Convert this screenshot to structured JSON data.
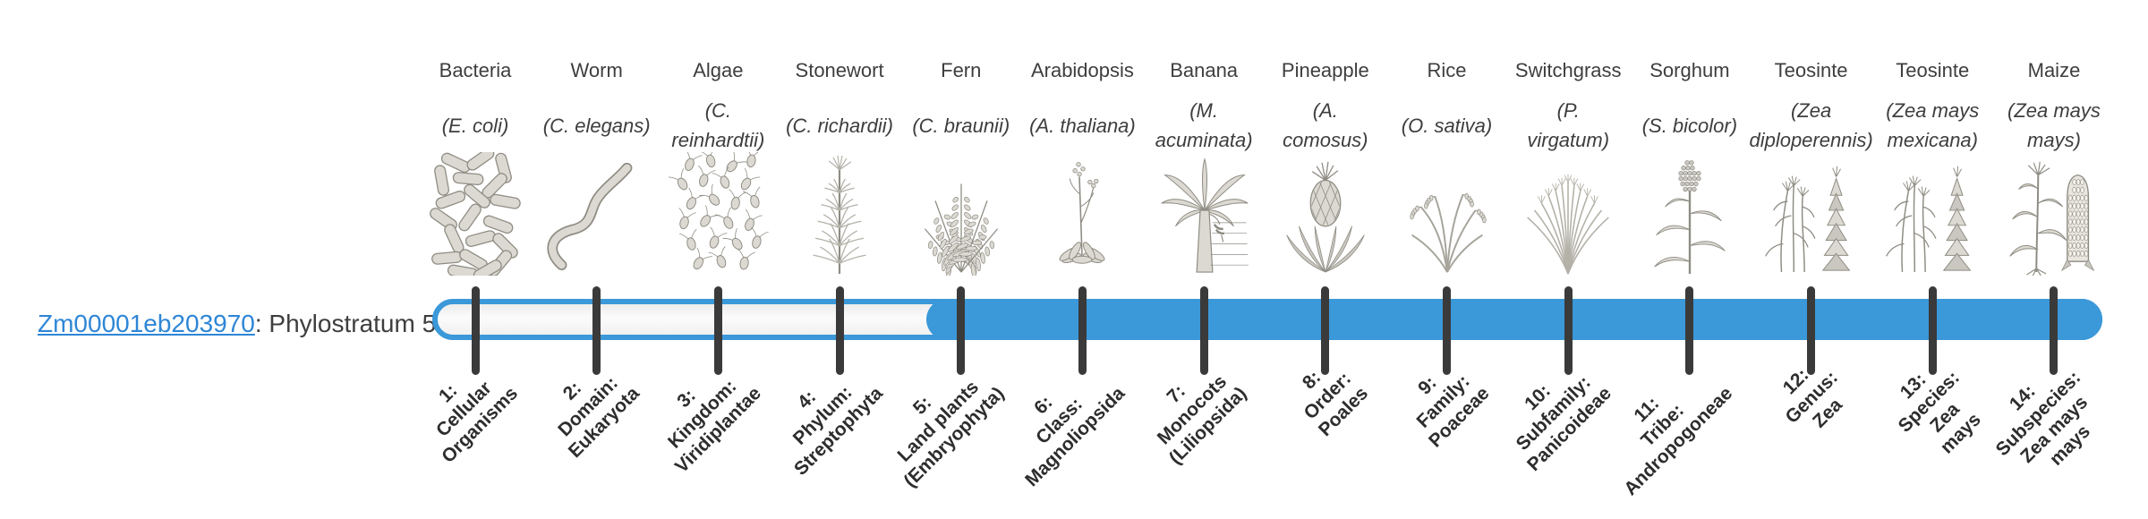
{
  "gene": {
    "id": "Zm00001eb203970",
    "label_suffix": ": Phylostratum 5",
    "phylostratum": 5
  },
  "colors": {
    "bar_blue": "#3b98d9",
    "tick_dark": "#3a3a3a",
    "text_dark": "#3e3e3e",
    "stage_label_dark": "#2d2d2d",
    "link_blue": "#2e86d6"
  },
  "timeline": {
    "total_strata": 14,
    "filled_from_stratum": 5,
    "filled_to_stratum": 14
  },
  "chart_data": {
    "type": "bar",
    "title": "Zm00001eb203970: Phylostratum 5",
    "orientation": "horizontal",
    "categories": [
      "1: Cellular Organisms",
      "2: Domain: Eukaryota",
      "3: Kingdom: Viridiplantae",
      "4: Phylum: Streptophyta",
      "5: Land plants (Embryophyta)",
      "6: Class: Magnoliopsida",
      "7: Monocots (Liliopsida)",
      "8: Order: Poales",
      "9: Family: Poaceae",
      "10: Subfamily: Panicoideae",
      "11: Tribe: Andropogoneae",
      "12: Genus: Zea",
      "13: Species: Zea mays",
      "14: Subspecies: Zea mays mays"
    ],
    "series": [
      {
        "name": "Zm00001eb203970",
        "phylostratum": 5,
        "conserved_range": [
          5,
          14
        ]
      }
    ],
    "legend": false
  },
  "strata": [
    {
      "index": 1,
      "organism": "Bacteria",
      "species_lines": [
        "(E. coli)"
      ],
      "icon": "bacteria-illustration",
      "stage_lines": [
        "1:",
        "Cellular",
        "Organisms"
      ]
    },
    {
      "index": 2,
      "organism": "Worm",
      "species_lines": [
        "(C. elegans)"
      ],
      "icon": "worm-illustration",
      "stage_lines": [
        "2:",
        "Domain:",
        "Eukaryota"
      ]
    },
    {
      "index": 3,
      "organism": "Algae",
      "species_lines": [
        "(C.",
        "reinhardtii)"
      ],
      "icon": "algae-illustration",
      "stage_lines": [
        "3:",
        "Kingdom:",
        "Viridiplantae"
      ]
    },
    {
      "index": 4,
      "organism": "Stonewort",
      "species_lines": [
        "(C. richardii)"
      ],
      "icon": "stonewort-illustration",
      "stage_lines": [
        "4:",
        "Phylum:",
        "Streptophyta"
      ]
    },
    {
      "index": 5,
      "organism": "Fern",
      "species_lines": [
        "(C. braunii)"
      ],
      "icon": "fern-illustration",
      "stage_lines": [
        "5:",
        "Land plants",
        "(Embryophyta)"
      ]
    },
    {
      "index": 6,
      "organism": "Arabidopsis",
      "species_lines": [
        "(A. thaliana)"
      ],
      "icon": "arabidopsis-illustration",
      "stage_lines": [
        "6:",
        "Class:",
        "Magnoliopsida"
      ]
    },
    {
      "index": 7,
      "organism": "Banana",
      "species_lines": [
        "(M.",
        "acuminata)"
      ],
      "icon": "banana-illustration",
      "stage_lines": [
        "7:",
        "Monocots",
        "(Liliopsida)"
      ]
    },
    {
      "index": 8,
      "organism": "Pineapple",
      "species_lines": [
        "(A.",
        "comosus)"
      ],
      "icon": "pineapple-illustration",
      "stage_lines": [
        "8:",
        "Order:",
        "Poales"
      ]
    },
    {
      "index": 9,
      "organism": "Rice",
      "species_lines": [
        "(O. sativa)"
      ],
      "icon": "rice-illustration",
      "stage_lines": [
        "9:",
        "Family:",
        "Poaceae"
      ]
    },
    {
      "index": 10,
      "organism": "Switchgrass",
      "species_lines": [
        "(P.",
        "virgatum)"
      ],
      "icon": "switchgrass-illustration",
      "stage_lines": [
        "10:",
        "Subfamily:",
        "Panicoideae"
      ]
    },
    {
      "index": 11,
      "organism": "Sorghum",
      "species_lines": [
        "(S. bicolor)"
      ],
      "icon": "sorghum-illustration",
      "stage_lines": [
        "11:",
        "Tribe:",
        "Andropogoneae"
      ]
    },
    {
      "index": 12,
      "organism": "Teosinte",
      "species_lines": [
        "(Zea",
        "diploperennis)"
      ],
      "icon": "teosinte-diploperennis-illustration",
      "stage_lines": [
        "12:",
        "Genus:",
        "Zea"
      ]
    },
    {
      "index": 13,
      "organism": "Teosinte",
      "species_lines": [
        "(Zea mays",
        "mexicana)"
      ],
      "icon": "teosinte-mexicana-illustration",
      "stage_lines": [
        "13:",
        "Species:",
        "Zea",
        "mays"
      ]
    },
    {
      "index": 14,
      "organism": "Maize",
      "species_lines": [
        "(Zea mays",
        "mays)"
      ],
      "icon": "maize-illustration",
      "stage_lines": [
        "14:",
        "Subspecies:",
        "Zea mays",
        "mays"
      ]
    }
  ]
}
